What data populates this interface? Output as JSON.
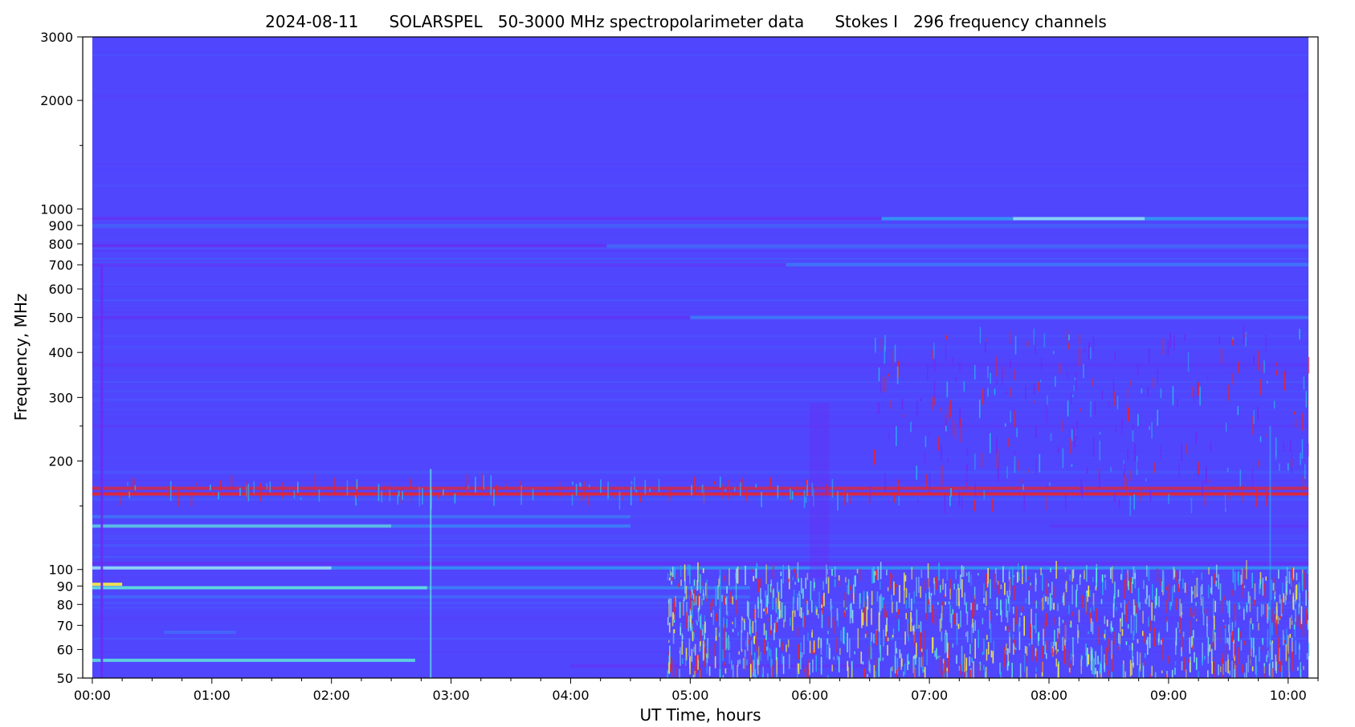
{
  "chart_data": {
    "type": "heatmap",
    "title": "2024-08-11      SOLARSPEL   50-3000 MHz spectropolarimeter data      Stokes I   296 frequency channels",
    "xlabel": "UT Time, hours",
    "ylabel": "Frequency, MHz",
    "y_scale": "log",
    "ylim": [
      50,
      3000
    ],
    "xlim": [
      -0.08,
      10.25
    ],
    "data_start_hour": 0.0,
    "data_end_hour": 10.17,
    "y_major_ticks": [
      {
        "value": 50,
        "label": "50"
      },
      {
        "value": 60,
        "label": "60"
      },
      {
        "value": 70,
        "label": "70"
      },
      {
        "value": 80,
        "label": "80"
      },
      {
        "value": 90,
        "label": "90"
      },
      {
        "value": 100,
        "label": "100"
      },
      {
        "value": 200,
        "label": "200"
      },
      {
        "value": 300,
        "label": "300"
      },
      {
        "value": 400,
        "label": "400"
      },
      {
        "value": 500,
        "label": "500"
      },
      {
        "value": 600,
        "label": "600"
      },
      {
        "value": 700,
        "label": "700"
      },
      {
        "value": 800,
        "label": "800"
      },
      {
        "value": 900,
        "label": "900"
      },
      {
        "value": 1000,
        "label": "1000"
      },
      {
        "value": 2000,
        "label": "2000"
      },
      {
        "value": 3000,
        "label": "3000"
      }
    ],
    "y_minor_ticks": [
      150,
      250,
      1500
    ],
    "x_major_ticks": [
      {
        "value": 0,
        "label": "00:00"
      },
      {
        "value": 1,
        "label": "01:00"
      },
      {
        "value": 2,
        "label": "02:00"
      },
      {
        "value": 3,
        "label": "03:00"
      },
      {
        "value": 4,
        "label": "04:00"
      },
      {
        "value": 5,
        "label": "05:00"
      },
      {
        "value": 6,
        "label": "06:00"
      },
      {
        "value": 7,
        "label": "07:00"
      },
      {
        "value": 8,
        "label": "08:00"
      },
      {
        "value": 9,
        "label": "09:00"
      },
      {
        "value": 10,
        "label": "10:00"
      }
    ],
    "x_minor_tick_step": 0.25,
    "colors": {
      "background": "#5046fe",
      "band_cyan": "#2ab0f0",
      "band_bright": "#5ff0d8",
      "band_yellow": "#f4e84a",
      "band_red": "#e8242c",
      "band_violet": "#6a2cf0",
      "band_light": "#8fd8f6"
    },
    "bands": [
      {
        "freq": 940,
        "t0": 0.0,
        "t1": 6.6,
        "color": "#6a2cf0",
        "opacity": 0.75
      },
      {
        "freq": 940,
        "t0": 6.6,
        "t1": 10.17,
        "color": "#2ab0f0",
        "opacity": 0.7
      },
      {
        "freq": 940,
        "t0": 7.7,
        "t1": 8.8,
        "color": "#8fd8f6",
        "opacity": 0.9
      },
      {
        "freq": 790,
        "t0": 0.0,
        "t1": 4.3,
        "color": "#6a2cf0",
        "opacity": 0.7
      },
      {
        "freq": 790,
        "t0": 4.3,
        "t1": 10.17,
        "color": "#3d7df4",
        "opacity": 0.55
      },
      {
        "freq": 700,
        "t0": 0.0,
        "t1": 5.8,
        "color": "#6a2cf0",
        "opacity": 0.45
      },
      {
        "freq": 700,
        "t0": 5.8,
        "t1": 10.17,
        "color": "#2ab0f0",
        "opacity": 0.4
      },
      {
        "freq": 500,
        "t0": 0.0,
        "t1": 5.0,
        "color": "#6a2cf0",
        "opacity": 0.6
      },
      {
        "freq": 500,
        "t0": 5.0,
        "t1": 10.17,
        "color": "#2ab0f0",
        "opacity": 0.45
      },
      {
        "freq": 370,
        "t0": 0.0,
        "t1": 10.17,
        "color": "#6a2cf0",
        "opacity": 0.3
      },
      {
        "freq": 250,
        "t0": 0.0,
        "t1": 10.17,
        "color": "#6a2cf0",
        "opacity": 0.25
      },
      {
        "freq": 168,
        "t0": 0.0,
        "t1": 10.17,
        "color": "#e8242c",
        "opacity": 0.75
      },
      {
        "freq": 162,
        "t0": 0.0,
        "t1": 10.17,
        "color": "#e8242c",
        "opacity": 0.9
      },
      {
        "freq": 140,
        "t0": 0.0,
        "t1": 4.5,
        "color": "#2ab0f0",
        "opacity": 0.35
      },
      {
        "freq": 132,
        "t0": 0.0,
        "t1": 2.5,
        "color": "#5ff0d8",
        "opacity": 0.7
      },
      {
        "freq": 132,
        "t0": 2.5,
        "t1": 4.5,
        "color": "#2ab0f0",
        "opacity": 0.5
      },
      {
        "freq": 132,
        "t0": 8.0,
        "t1": 10.17,
        "color": "#6a2cf0",
        "opacity": 0.4
      },
      {
        "freq": 104,
        "t0": 0.0,
        "t1": 10.17,
        "color": "#6a2cf0",
        "opacity": 0.65
      },
      {
        "freq": 101,
        "t0": 0.0,
        "t1": 2.0,
        "color": "#8fd8f6",
        "opacity": 0.95
      },
      {
        "freq": 101,
        "t0": 2.0,
        "t1": 10.17,
        "color": "#2ab0f0",
        "opacity": 0.65
      },
      {
        "freq": 91,
        "t0": 0.0,
        "t1": 0.25,
        "color": "#f4e84a",
        "opacity": 0.95
      },
      {
        "freq": 89,
        "t0": 0.0,
        "t1": 2.8,
        "color": "#5ff0d8",
        "opacity": 0.85
      },
      {
        "freq": 89,
        "t0": 2.8,
        "t1": 5.5,
        "color": "#2ab0f0",
        "opacity": 0.5
      },
      {
        "freq": 84,
        "t0": 0.0,
        "t1": 5.5,
        "color": "#2ab0f0",
        "opacity": 0.3
      },
      {
        "freq": 67,
        "t0": 0.6,
        "t1": 1.2,
        "color": "#2ab0f0",
        "opacity": 0.3
      },
      {
        "freq": 56,
        "t0": 0.0,
        "t1": 2.7,
        "color": "#5ff0d8",
        "opacity": 0.8
      },
      {
        "freq": 54,
        "t0": 4.0,
        "t1": 6.5,
        "color": "#6a2cf0",
        "opacity": 0.5
      }
    ]
  }
}
